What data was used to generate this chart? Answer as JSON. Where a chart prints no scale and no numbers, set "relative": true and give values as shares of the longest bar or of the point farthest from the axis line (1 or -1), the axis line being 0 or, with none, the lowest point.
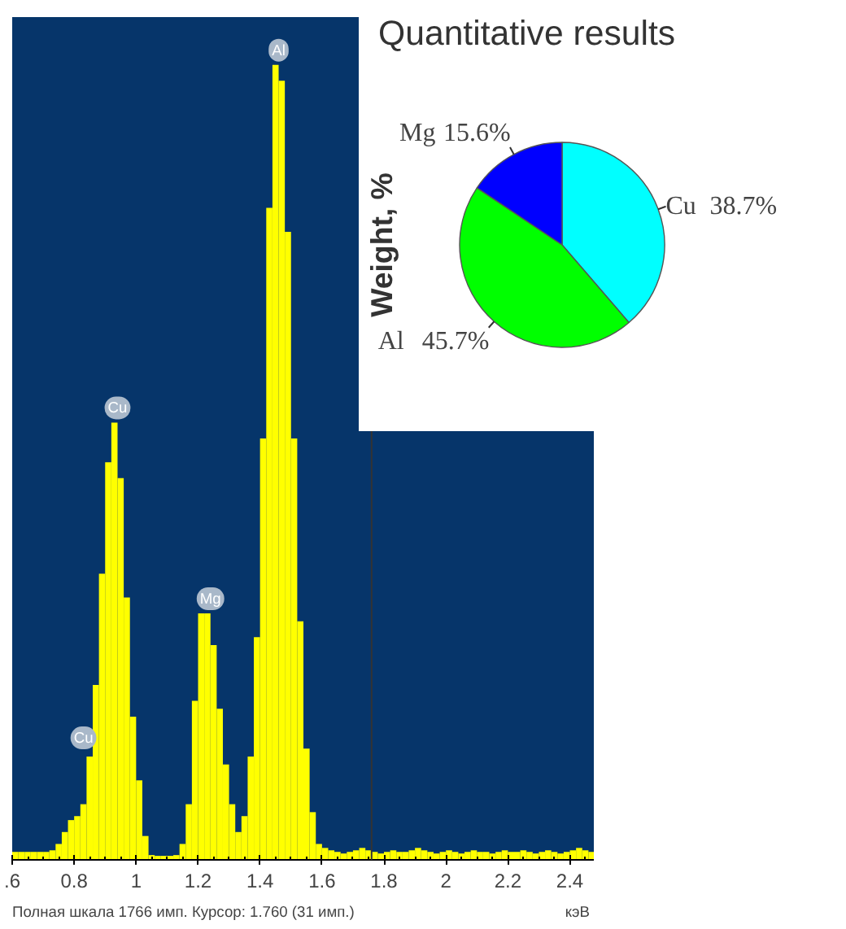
{
  "chart_data": [
    {
      "type": "bar",
      "xlabel": "кэВ",
      "color": "#ffff00",
      "relative": true,
      "tick_labels": "x",
      "xlim": [
        0.6,
        2.48
      ],
      "xticks": [
        {
          "value": 0.6,
          "label": ".6"
        },
        0.8,
        1,
        1.2,
        1.4,
        1.6,
        1.8,
        2,
        2.2,
        2.4
      ],
      "x": [
        0.61,
        0.63,
        0.65,
        0.67,
        0.69,
        0.71,
        0.73,
        0.75,
        0.77,
        0.79,
        0.81,
        0.83,
        0.85,
        0.87,
        0.89,
        0.91,
        0.93,
        0.95,
        0.97,
        0.99,
        1.01,
        1.03,
        1.05,
        1.07,
        1.09,
        1.11,
        1.13,
        1.15,
        1.17,
        1.19,
        1.21,
        1.23,
        1.25,
        1.27,
        1.29,
        1.31,
        1.33,
        1.35,
        1.37,
        1.39,
        1.41,
        1.43,
        1.45,
        1.47,
        1.49,
        1.51,
        1.53,
        1.55,
        1.57,
        1.59,
        1.61,
        1.63,
        1.65,
        1.67,
        1.69,
        1.71,
        1.73,
        1.75,
        1.77,
        1.79,
        1.81,
        1.83,
        1.85,
        1.87,
        1.89,
        1.91,
        1.93,
        1.95,
        1.97,
        1.99,
        2.01,
        2.03,
        2.05,
        2.07,
        2.09,
        2.11,
        2.13,
        2.15,
        2.17,
        2.19,
        2.21,
        2.23,
        2.25,
        2.27,
        2.29,
        2.31,
        2.33,
        2.35,
        2.37,
        2.39,
        2.41,
        2.43,
        2.45,
        2.47
      ],
      "values": [
        0.01,
        0.01,
        0.01,
        0.01,
        0.01,
        0.01,
        0.012,
        0.02,
        0.035,
        0.05,
        0.055,
        0.07,
        0.13,
        0.22,
        0.36,
        0.5,
        0.55,
        0.48,
        0.33,
        0.18,
        0.1,
        0.03,
        0.006,
        0.005,
        0.005,
        0.005,
        0.006,
        0.02,
        0.07,
        0.2,
        0.31,
        0.31,
        0.27,
        0.19,
        0.12,
        0.07,
        0.035,
        0.055,
        0.13,
        0.28,
        0.53,
        0.82,
        1.0,
        0.98,
        0.79,
        0.53,
        0.3,
        0.14,
        0.06,
        0.02,
        0.015,
        0.012,
        0.01,
        0.008,
        0.01,
        0.012,
        0.015,
        0.012,
        0.01,
        0.008,
        0.01,
        0.012,
        0.01,
        0.01,
        0.012,
        0.015,
        0.012,
        0.01,
        0.008,
        0.01,
        0.012,
        0.01,
        0.008,
        0.01,
        0.012,
        0.01,
        0.01,
        0.008,
        0.01,
        0.012,
        0.01,
        0.01,
        0.012,
        0.01,
        0.008,
        0.01,
        0.012,
        0.01,
        0.008,
        0.01,
        0.012,
        0.015,
        0.012,
        0.01
      ],
      "ref_lines": [
        {
          "axis": "x",
          "value": 1.76,
          "color": "#333333"
        }
      ],
      "annotations": [
        {
          "text": "Cu",
          "x": 0.83,
          "y": 0.135
        },
        {
          "text": "Cu",
          "x": 0.94,
          "y": 0.55
        },
        {
          "text": "Mg",
          "x": 1.24,
          "y": 0.31
        },
        {
          "text": "Al",
          "x": 1.46,
          "y": 1.0
        },
        "Полная шкала 1766 имп. Курсор: 1.760  (31 имп.)"
      ]
    },
    {
      "type": "pie",
      "title": "Quantitative results",
      "ylabel": "Weight, %",
      "categories": [
        "Cu",
        "Al",
        "Mg"
      ],
      "values": [
        38.7,
        45.7,
        15.6
      ],
      "value_labels": [
        "38.7%",
        "45.7%",
        "15.6%"
      ],
      "colors": [
        "#00ffff",
        "#00ff00",
        "#0000ff"
      ]
    }
  ]
}
